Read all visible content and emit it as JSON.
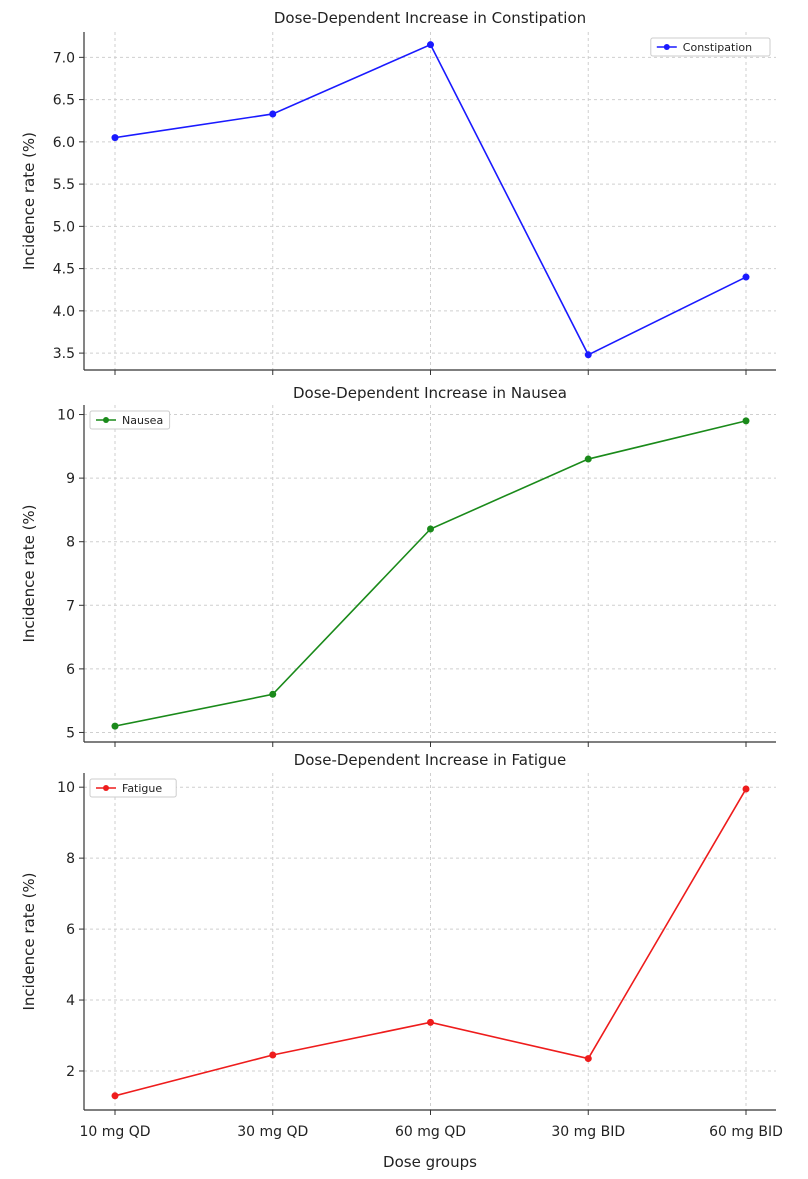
{
  "chart_data": [
    {
      "type": "line",
      "title": "Dose-Dependent Increase in Constipation",
      "ylabel": "Incidence rate (%)",
      "categories": [
        "10 mg QD",
        "30 mg QD",
        "60 mg QD",
        "30 mg BID",
        "60 mg BID"
      ],
      "series": [
        {
          "name": "Constipation",
          "color": "#1a1aff",
          "values": [
            6.05,
            6.33,
            7.15,
            3.48,
            4.4
          ]
        }
      ],
      "ylim": [
        3.3,
        7.3
      ],
      "yticks": [
        3.5,
        4.0,
        4.5,
        5.0,
        5.5,
        6.0,
        6.5,
        7.0
      ],
      "ytick_labels": [
        "3.5",
        "4.0",
        "4.5",
        "5.0",
        "5.5",
        "6.0",
        "6.5",
        "7.0"
      ],
      "legend_position": "top-right",
      "grid": true
    },
    {
      "type": "line",
      "title": "Dose-Dependent Increase in Nausea",
      "ylabel": "Incidence rate (%)",
      "categories": [
        "10 mg QD",
        "30 mg QD",
        "60 mg QD",
        "30 mg BID",
        "60 mg BID"
      ],
      "series": [
        {
          "name": "Nausea",
          "color": "#1a8a1a",
          "values": [
            5.1,
            5.6,
            8.2,
            9.3,
            9.9
          ]
        }
      ],
      "ylim": [
        4.85,
        10.15
      ],
      "yticks": [
        5,
        6,
        7,
        8,
        9,
        10
      ],
      "ytick_labels": [
        "5",
        "6",
        "7",
        "8",
        "9",
        "10"
      ],
      "legend_position": "top-left",
      "grid": true
    },
    {
      "type": "line",
      "title": "Dose-Dependent Increase in Fatigue",
      "xlabel": "Dose groups",
      "ylabel": "Incidence rate (%)",
      "categories": [
        "10 mg QD",
        "30 mg QD",
        "60 mg QD",
        "30 mg BID",
        "60 mg BID"
      ],
      "series": [
        {
          "name": "Fatigue",
          "color": "#ee1c1c",
          "values": [
            1.3,
            2.45,
            3.37,
            2.35,
            9.95
          ]
        }
      ],
      "ylim": [
        0.9,
        10.4
      ],
      "yticks": [
        2,
        4,
        6,
        8,
        10
      ],
      "ytick_labels": [
        "2",
        "4",
        "6",
        "8",
        "10"
      ],
      "legend_position": "top-left",
      "grid": true
    }
  ]
}
